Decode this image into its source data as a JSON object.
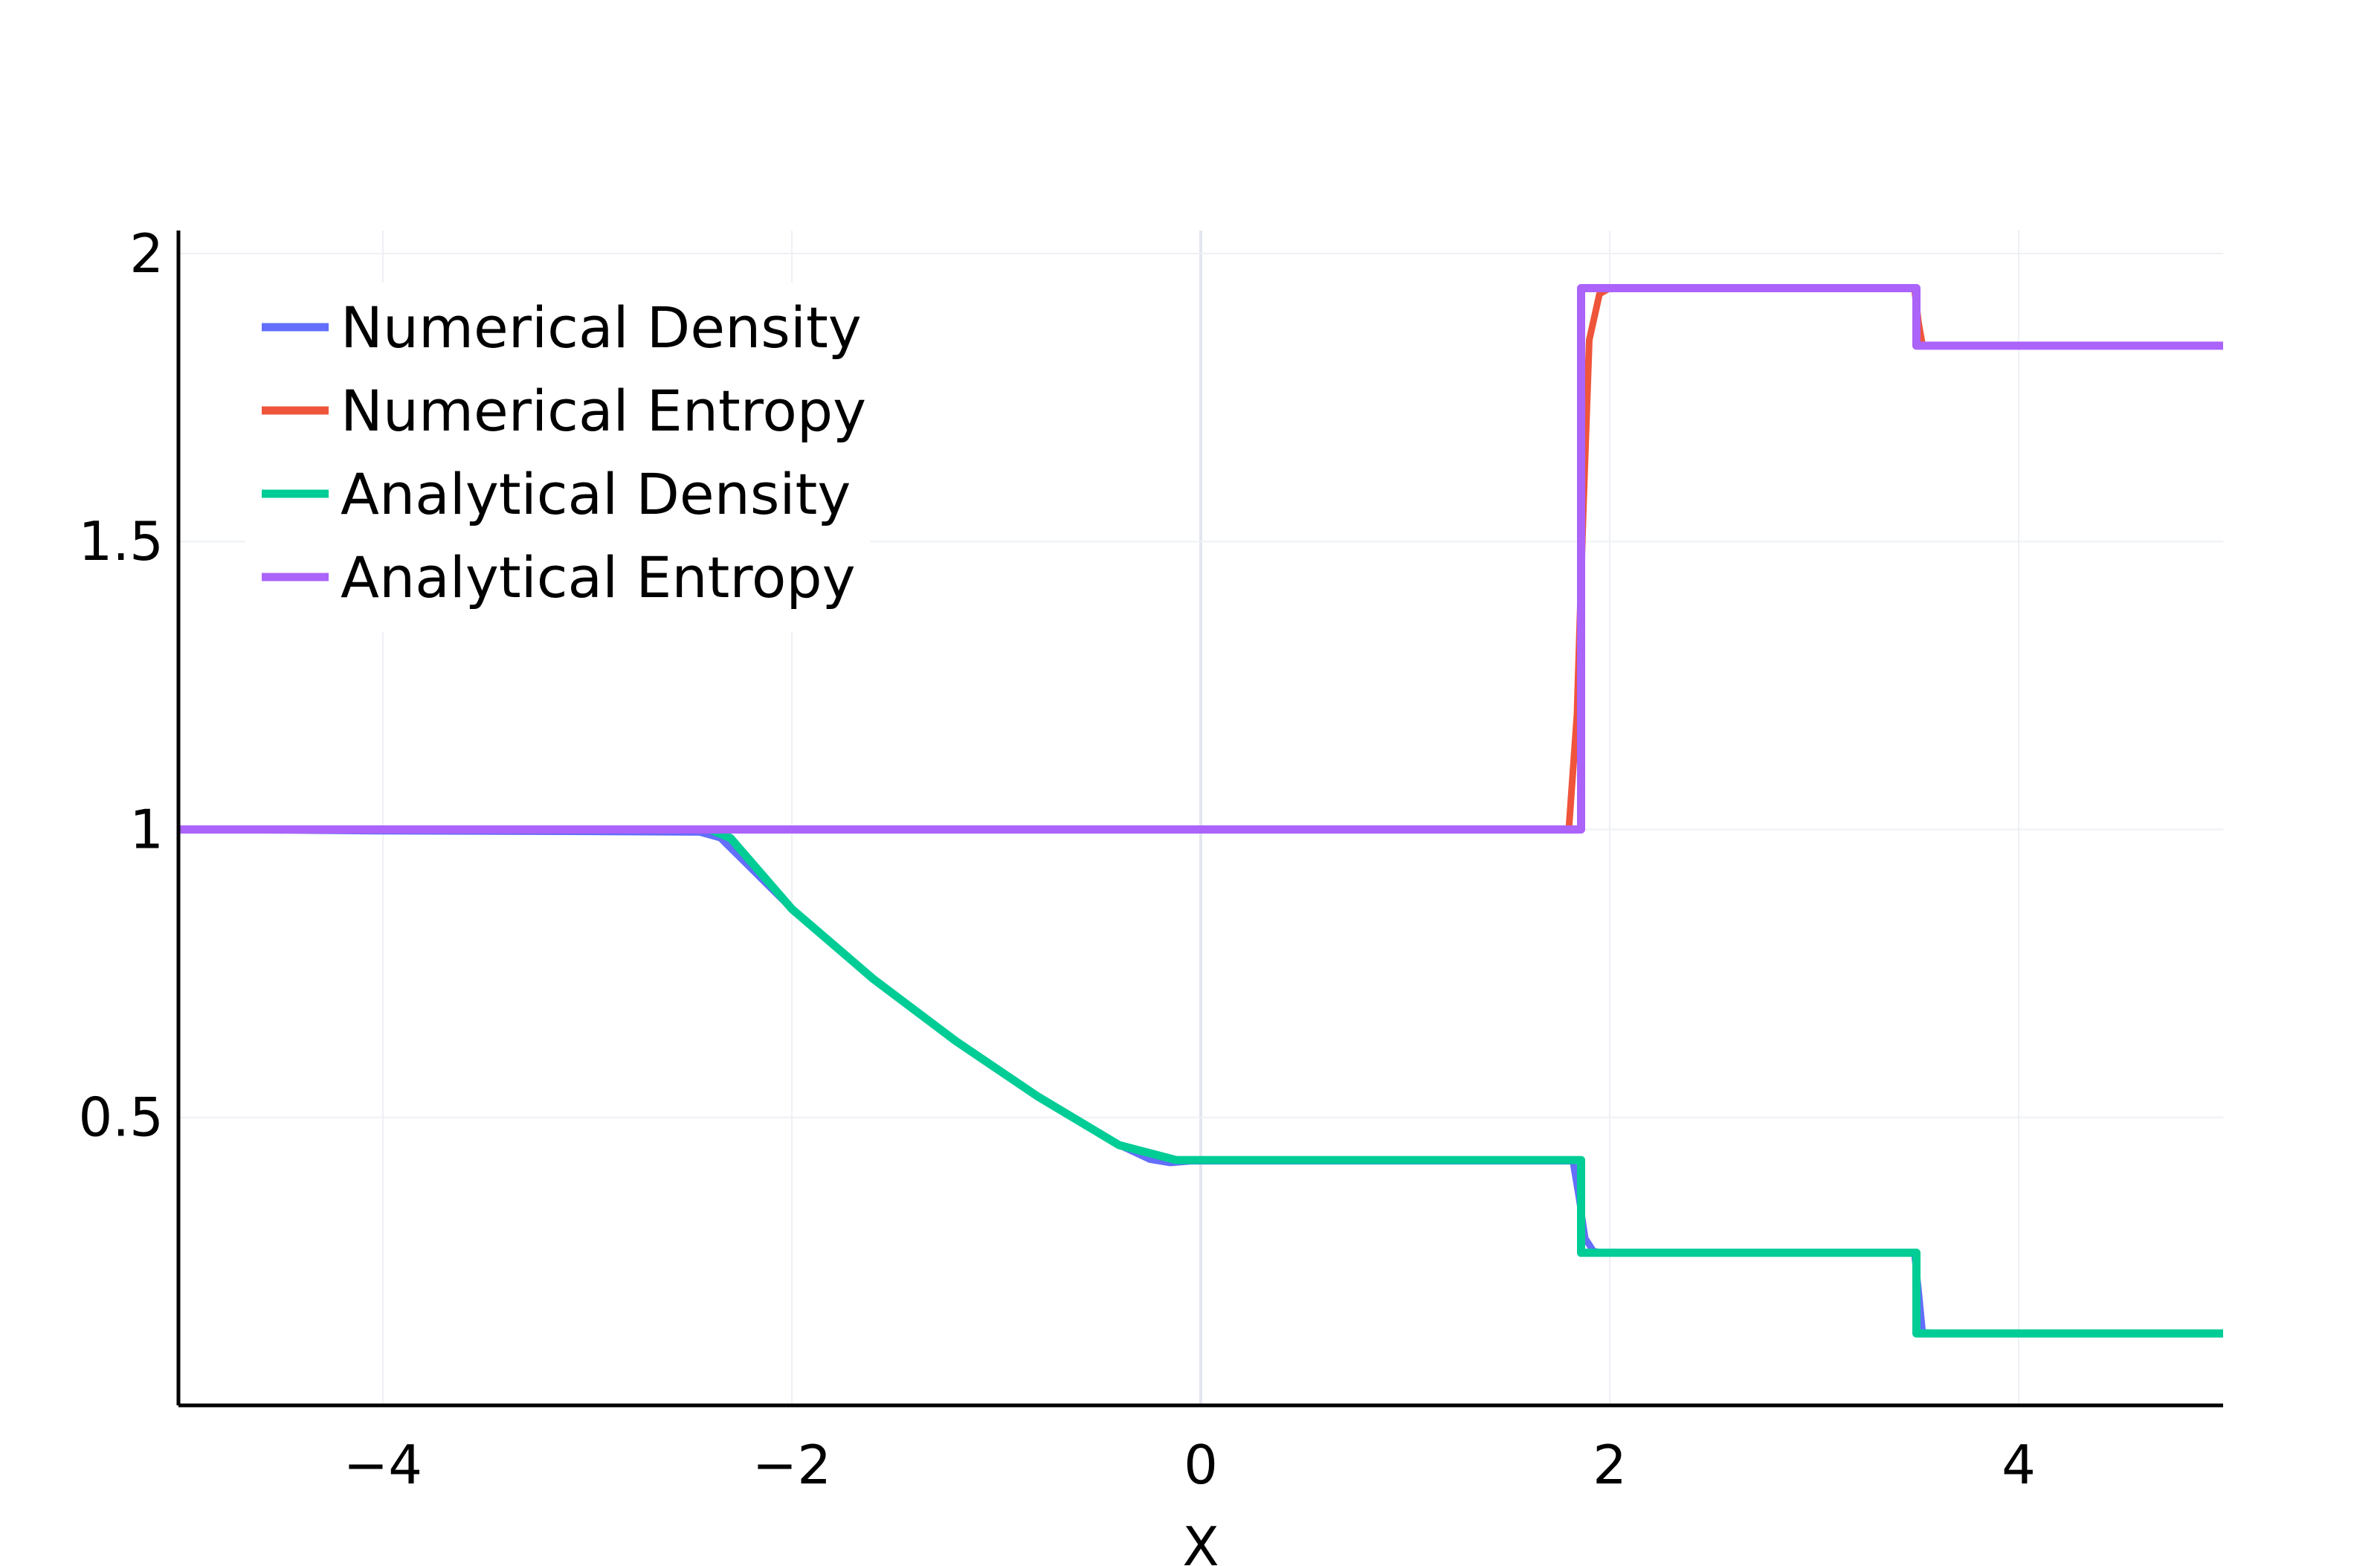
{
  "chart_data": {
    "type": "line",
    "title": "",
    "xlabel": "X",
    "ylabel": "",
    "xlim": [
      -5,
      5
    ],
    "ylim": [
      0,
      2.04
    ],
    "grid": true,
    "legend_position": "top-left",
    "x_ticks": [
      {
        "value": -4,
        "label": "−4"
      },
      {
        "value": -2,
        "label": "−2"
      },
      {
        "value": 0,
        "label": "0"
      },
      {
        "value": 2,
        "label": "2"
      },
      {
        "value": 4,
        "label": "4"
      }
    ],
    "y_ticks": [
      {
        "value": 0.5,
        "label": "0.5"
      },
      {
        "value": 1,
        "label": "1"
      },
      {
        "value": 1.5,
        "label": "1.5"
      },
      {
        "value": 2,
        "label": "2"
      }
    ],
    "series": [
      {
        "name": "Numerical Density",
        "color": "#636efa",
        "x": [
          -5,
          -4,
          -3,
          -2.45,
          -2.35,
          -2,
          -1.6,
          -1.2,
          -0.8,
          -0.4,
          -0.25,
          -0.15,
          -0.05,
          1.5,
          1.82,
          1.85,
          1.88,
          1.92,
          1.97,
          3.49,
          3.51,
          3.53,
          3.6,
          5
        ],
        "y": [
          1.0,
          0.997,
          0.996,
          0.995,
          0.985,
          0.862,
          0.74,
          0.633,
          0.537,
          0.452,
          0.427,
          0.421,
          0.424,
          0.424,
          0.424,
          0.36,
          0.29,
          0.268,
          0.264,
          0.264,
          0.2,
          0.127,
          0.125,
          0.125
        ]
      },
      {
        "name": "Numerical Entropy",
        "color": "#ef553b",
        "x": [
          -5,
          0,
          1.8,
          1.84,
          1.87,
          1.9,
          1.95,
          2.0,
          3.49,
          3.51,
          3.53,
          5
        ],
        "y": [
          1.0,
          1.0,
          1.0,
          1.2,
          1.55,
          1.85,
          1.93,
          1.94,
          1.94,
          1.88,
          1.84,
          1.84
        ]
      },
      {
        "name": "Analytical Density",
        "color": "#00cc96",
        "x": [
          -5,
          -2.4,
          -2.3,
          -2.0,
          -1.6,
          -1.2,
          -0.8,
          -0.4,
          -0.12,
          1.86,
          1.86,
          3.5,
          3.5,
          5
        ],
        "y": [
          1.0,
          1.0,
          0.985,
          0.862,
          0.74,
          0.633,
          0.537,
          0.452,
          0.426,
          0.426,
          0.265,
          0.265,
          0.125,
          0.125
        ],
        "line_width_hint": "thick"
      },
      {
        "name": "Analytical Entropy",
        "color": "#ab63fa",
        "x": [
          -5,
          1.86,
          1.86,
          3.5,
          3.5,
          5
        ],
        "y": [
          1.0,
          1.0,
          1.94,
          1.94,
          1.84,
          1.84
        ],
        "line_width_hint": "thick"
      }
    ]
  }
}
